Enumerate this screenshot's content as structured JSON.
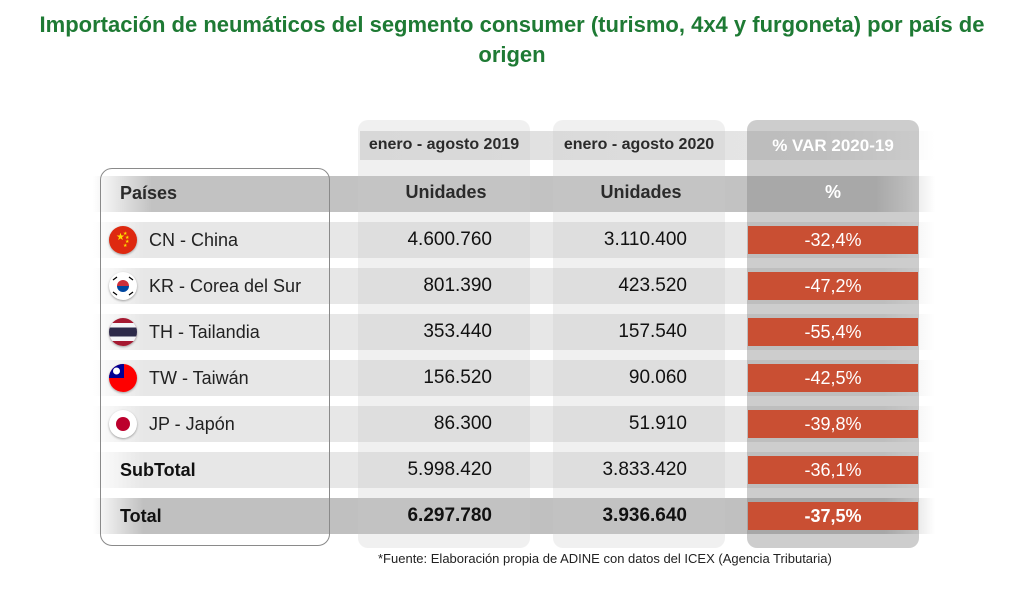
{
  "title": "Importación de neumáticos del segmento consumer (turismo, 4x4 y furgoneta) por país de origen",
  "periods": {
    "p2019": "enero - agosto 2019",
    "p2020": "enero - agosto 2020",
    "var": "% VAR 2020-19"
  },
  "headers": {
    "paises": "Países",
    "unidades_2019": "Unidades",
    "unidades_2020": "Unidades",
    "pct": "%"
  },
  "rows": [
    {
      "country": "CN - China",
      "u2019": "4.600.760",
      "u2020": "3.110.400",
      "var": "-32,4%",
      "flag": "china-flag-icon"
    },
    {
      "country": "KR - Corea del Sur",
      "u2019": "801.390",
      "u2020": "423.520",
      "var": "-47,2%",
      "flag": "south-korea-flag-icon"
    },
    {
      "country": "TH - Tailandia",
      "u2019": "353.440",
      "u2020": "157.540",
      "var": "-55,4%",
      "flag": "thailand-flag-icon"
    },
    {
      "country": "TW - Taiwán",
      "u2019": "156.520",
      "u2020": "90.060",
      "var": "-42,5%",
      "flag": "taiwan-flag-icon"
    },
    {
      "country": "JP - Japón",
      "u2019": "86.300",
      "u2020": "51.910",
      "var": "-39,8%",
      "flag": "japan-flag-icon"
    }
  ],
  "subtotal": {
    "label": "SubTotal",
    "u2019": "5.998.420",
    "u2020": "3.833.420",
    "var": "-36,1%"
  },
  "total": {
    "label": "Total",
    "u2019": "6.297.780",
    "u2020": "3.936.640",
    "var": "-37,5%"
  },
  "source": "*Fuente: Elaboración propia de ADINE con datos del ICEX (Agencia Tributaria)",
  "colors": {
    "title": "#1e7a34",
    "negative_var": "#c94f33"
  },
  "chart_data": {
    "type": "table",
    "title": "Importación de neumáticos del segmento consumer (turismo, 4x4 y furgoneta) por país de origen",
    "columns": [
      "Países",
      "enero - agosto 2019 Unidades",
      "enero - agosto 2020 Unidades",
      "% VAR 2020-19"
    ],
    "rows": [
      [
        "CN - China",
        4600760,
        3110400,
        -32.4
      ],
      [
        "KR - Corea del Sur",
        801390,
        423520,
        -47.2
      ],
      [
        "TH - Tailandia",
        353440,
        157540,
        -55.4
      ],
      [
        "TW - Taiwán",
        156520,
        90060,
        -42.5
      ],
      [
        "JP - Japón",
        86300,
        51910,
        -39.8
      ],
      [
        "SubTotal",
        5998420,
        3833420,
        -36.1
      ],
      [
        "Total",
        6297780,
        3936640,
        -37.5
      ]
    ]
  }
}
